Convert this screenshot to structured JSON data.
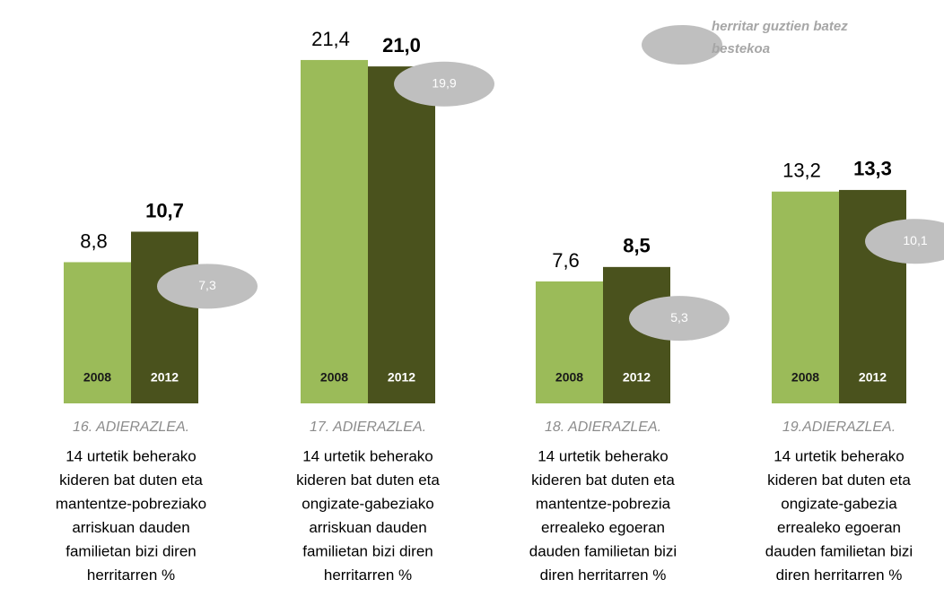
{
  "chart_data": {
    "type": "bar",
    "categories": [
      "16. ADIERAZLEA.",
      "17. ADIERAZLEA.",
      "18. ADIERAZLEA.",
      "19.ADIERAZLEA."
    ],
    "descriptions": [
      [
        "14 urtetik beherako",
        "kideren bat duten eta",
        "mantentze-pobreziako",
        "arriskuan dauden",
        "familietan bizi diren",
        "herritarren %"
      ],
      [
        "14 urtetik beherako",
        "kideren bat duten eta",
        "ongizate-gabeziako",
        "arriskuan dauden",
        "familietan bizi diren",
        "herritarren %"
      ],
      [
        "14 urtetik beherako",
        "kideren bat duten eta",
        "mantentze-pobrezia",
        "errealeko egoeran",
        "dauden familietan bizi",
        "diren herritarren %"
      ],
      [
        "14 urtetik beherako",
        "kideren bat duten eta",
        "ongizate-gabezia",
        "errealeko egoeran",
        "dauden familietan bizi",
        "diren herritarren %"
      ]
    ],
    "series": [
      {
        "name": "2008",
        "color": "#9bbb59",
        "values": [
          8.8,
          21.4,
          7.6,
          13.2
        ],
        "value_labels": [
          "8,8",
          "21,4",
          "7,6",
          "13,2"
        ]
      },
      {
        "name": "2012",
        "color": "#4a521d",
        "values": [
          10.7,
          21.0,
          8.5,
          13.3
        ],
        "value_labels": [
          "10,7",
          "21,0",
          "8,5",
          "13,3"
        ]
      }
    ],
    "average": {
      "name": "herritar guztien batez bestekoa",
      "color": "#bfbfbf",
      "values": [
        7.3,
        19.9,
        5.3,
        10.1
      ],
      "value_labels": [
        "7,3",
        "19,9",
        "5,3",
        "10,1"
      ]
    }
  }
}
